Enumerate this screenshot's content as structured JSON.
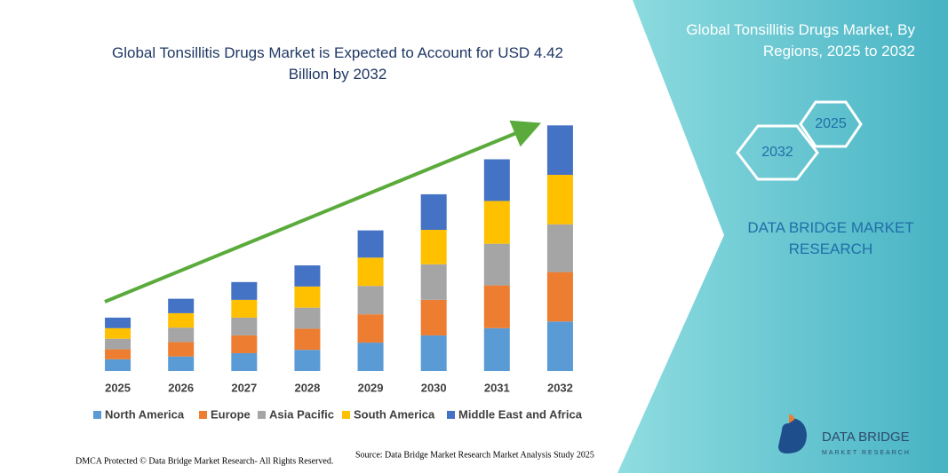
{
  "chart_data": {
    "type": "stacked_bar",
    "title": "Global Tonsillitis Drugs Market is Expected to Account for USD 4.42 Billion by 2032",
    "categories": [
      "2025",
      "2026",
      "2027",
      "2028",
      "2029",
      "2030",
      "2031",
      "2032"
    ],
    "series": [
      {
        "name": "North America",
        "color": "#5b9bd5",
        "values": [
          0.21,
          0.26,
          0.32,
          0.38,
          0.51,
          0.64,
          0.77,
          0.89
        ]
      },
      {
        "name": "Europe",
        "color": "#ed7d31",
        "values": [
          0.18,
          0.26,
          0.32,
          0.38,
          0.51,
          0.64,
          0.77,
          0.89
        ]
      },
      {
        "name": "Asia Pacific",
        "color": "#a5a5a5",
        "values": [
          0.19,
          0.26,
          0.32,
          0.38,
          0.51,
          0.64,
          0.75,
          0.86
        ]
      },
      {
        "name": "South America",
        "color": "#ffc000",
        "values": [
          0.19,
          0.26,
          0.32,
          0.38,
          0.51,
          0.62,
          0.77,
          0.89
        ]
      },
      {
        "name": "Middle East and Africa",
        "color": "#4472c4",
        "values": [
          0.19,
          0.26,
          0.32,
          0.38,
          0.49,
          0.64,
          0.75,
          0.89
        ]
      }
    ],
    "ylim": [
      0,
      5
    ],
    "grid": false,
    "legend": "bottom"
  },
  "panel": {
    "title": "Global Tonsillitis Drugs Market, By Regions, 2025 to 2032",
    "hexagons": [
      "2025",
      "2032"
    ],
    "brand": "DATA BRIDGE MARKET RESEARCH"
  },
  "logo": {
    "name": "DATA BRIDGE",
    "tagline": "MARKET RESEARCH"
  },
  "footer": {
    "dmca": "DMCA Protected © Data Bridge Market Research- All Rights Reserved.",
    "source": "Source: Data Bridge Market Research Market Analysis Study 2025"
  }
}
